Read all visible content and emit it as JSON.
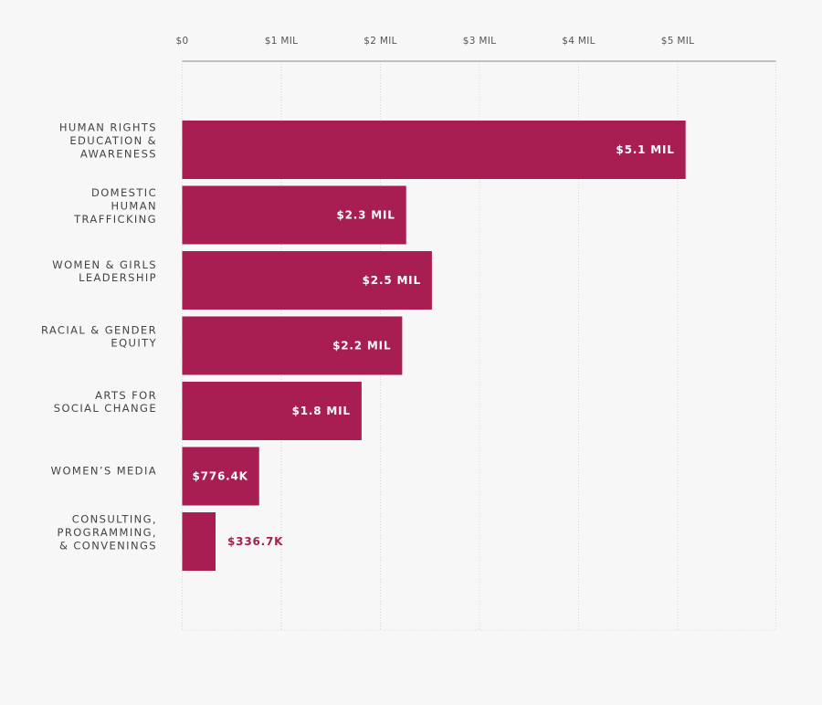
{
  "chart_data": {
    "type": "bar",
    "orientation": "horizontal",
    "title": "",
    "xlabel": "",
    "ylabel": "",
    "xlim": [
      0,
      6
    ],
    "x_ticks": [
      {
        "value": 0,
        "label": "$0"
      },
      {
        "value": 1,
        "label": "$1 MIL"
      },
      {
        "value": 2,
        "label": "$2 MIL"
      },
      {
        "value": 3,
        "label": "$3 MIL"
      },
      {
        "value": 4,
        "label": "$4 MIL"
      },
      {
        "value": 5,
        "label": "$5 MIL"
      }
    ],
    "grid": true,
    "bar_color": "#a91e52",
    "label_inside_color": "#ffffff",
    "label_outside_color": "#a91e52",
    "bars": [
      {
        "category": [
          "HUMAN RIGHTS",
          "EDUCATION &",
          "AWARENESS"
        ],
        "value": 5.08,
        "label": "$5.1 MIL"
      },
      {
        "category": [
          "DOMESTIC",
          "HUMAN",
          "TRAFFICKING"
        ],
        "value": 2.26,
        "label": "$2.3 MIL"
      },
      {
        "category": [
          "WOMEN & GIRLS",
          "LEADERSHIP"
        ],
        "value": 2.52,
        "label": "$2.5 MIL"
      },
      {
        "category": [
          "RACIAL & GENDER",
          "EQUITY"
        ],
        "value": 2.22,
        "label": "$2.2 MIL"
      },
      {
        "category": [
          "ARTS FOR",
          "SOCIAL CHANGE"
        ],
        "value": 1.81,
        "label": "$1.8 MIL"
      },
      {
        "category": [
          "WOMEN’S MEDIA"
        ],
        "value": 0.7764,
        "label": "$776.4K"
      },
      {
        "category": [
          "CONSULTING,",
          "PROGRAMMING,",
          "& CONVENINGS"
        ],
        "value": 0.3367,
        "label": "$336.7K"
      }
    ]
  }
}
